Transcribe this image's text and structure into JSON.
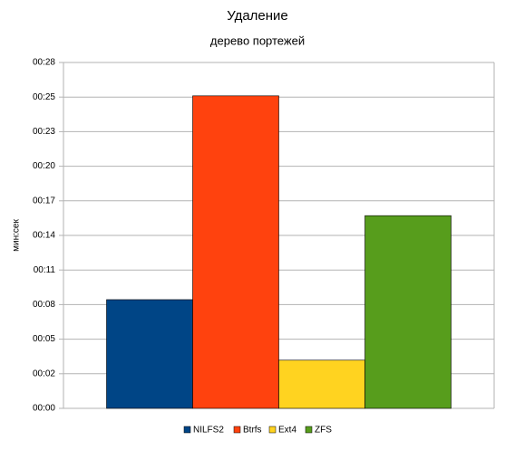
{
  "chart_data": {
    "type": "bar",
    "title": "Удаление",
    "subtitle": "дерево портежей",
    "y_label": "мин:сек",
    "categories": [
      null
    ],
    "series": [
      {
        "name": "NILFS2",
        "color": "#004586",
        "values": [
          8.8
        ]
      },
      {
        "name": "Btrfs",
        "color": "#ff420e",
        "values": [
          25.3
        ]
      },
      {
        "name": "Ext4",
        "color": "#ffd320",
        "values": [
          3.9
        ]
      },
      {
        "name": "ZFS",
        "color": "#579d1c",
        "values": [
          15.6
        ]
      }
    ],
    "ylim": [
      0,
      28
    ],
    "yticks": [
      {
        "value": 0,
        "label": "00:00"
      },
      {
        "value": 2.8,
        "label": "00:02"
      },
      {
        "value": 5.6,
        "label": "00:05"
      },
      {
        "value": 8.4,
        "label": "00:08"
      },
      {
        "value": 11.2,
        "label": "00:11"
      },
      {
        "value": 14,
        "label": "00:14"
      },
      {
        "value": 16.8,
        "label": "00:17"
      },
      {
        "value": 19.6,
        "label": "00:20"
      },
      {
        "value": 22.4,
        "label": "00:23"
      },
      {
        "value": 25.2,
        "label": "00:25"
      },
      {
        "value": 28,
        "label": "00:28"
      }
    ],
    "grid": true,
    "legend": "bottom"
  }
}
